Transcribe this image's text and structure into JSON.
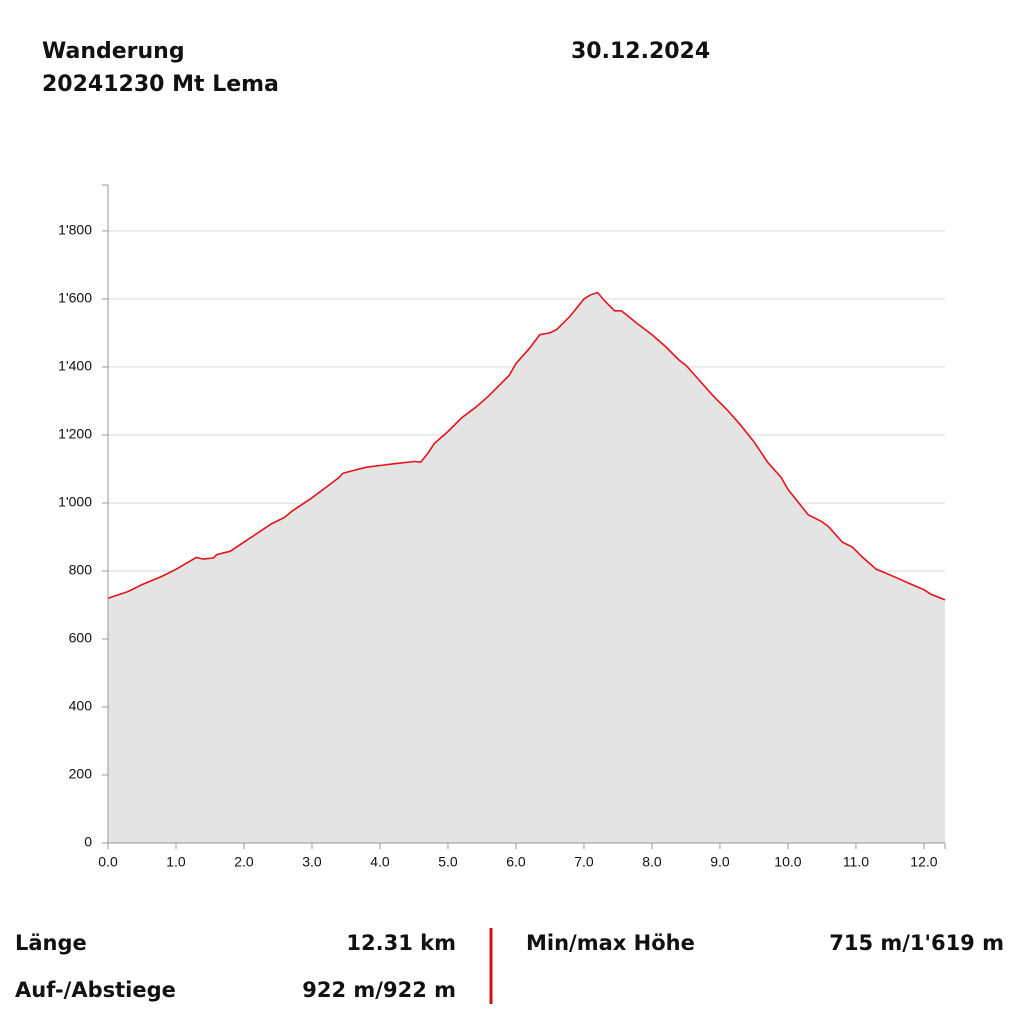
{
  "header": {
    "title": "Wanderung",
    "subtitle": "20241230 Mt Lema",
    "date": "30.12.2024"
  },
  "chart_data": {
    "type": "area",
    "x": [
      0,
      0.3,
      0.5,
      0.8,
      1.0,
      1.3,
      1.4,
      1.55,
      1.6,
      1.8,
      2.0,
      2.4,
      2.6,
      2.7,
      3.0,
      3.2,
      3.4,
      3.45,
      3.6,
      3.8,
      4.0,
      4.2,
      4.5,
      4.6,
      4.7,
      4.8,
      5.0,
      5.2,
      5.4,
      5.6,
      5.8,
      5.9,
      6.0,
      6.2,
      6.35,
      6.5,
      6.6,
      6.8,
      7.0,
      7.1,
      7.2,
      7.3,
      7.45,
      7.55,
      7.8,
      8.0,
      8.2,
      8.4,
      8.5,
      8.7,
      8.9,
      9.1,
      9.3,
      9.5,
      9.7,
      9.9,
      10.0,
      10.3,
      10.5,
      10.6,
      10.8,
      10.95,
      11.1,
      11.3,
      11.4,
      11.6,
      11.8,
      12.0,
      12.1,
      12.31
    ],
    "values": [
      720,
      740,
      760,
      785,
      805,
      840,
      835,
      838,
      848,
      858,
      885,
      938,
      958,
      975,
      1015,
      1045,
      1075,
      1087,
      1095,
      1105,
      1110,
      1115,
      1122,
      1120,
      1145,
      1175,
      1210,
      1250,
      1280,
      1315,
      1355,
      1375,
      1410,
      1455,
      1495,
      1500,
      1510,
      1550,
      1600,
      1612,
      1619,
      1595,
      1565,
      1565,
      1525,
      1495,
      1460,
      1420,
      1405,
      1360,
      1315,
      1275,
      1230,
      1180,
      1120,
      1075,
      1040,
      965,
      945,
      930,
      885,
      870,
      840,
      805,
      797,
      780,
      762,
      745,
      732,
      715
    ],
    "color": "#e3131b",
    "fill_color": "#e4e4e4",
    "xlim": [
      0,
      12.31
    ],
    "ylim": [
      0,
      1935
    ],
    "xticks": [
      {
        "value": 0,
        "label": "0.0"
      },
      {
        "value": 1,
        "label": "1.0"
      },
      {
        "value": 2,
        "label": "2.0"
      },
      {
        "value": 3,
        "label": "3.0"
      },
      {
        "value": 4,
        "label": "4.0"
      },
      {
        "value": 5,
        "label": "5.0"
      },
      {
        "value": 6,
        "label": "6.0"
      },
      {
        "value": 7,
        "label": "7.0"
      },
      {
        "value": 8,
        "label": "8.0"
      },
      {
        "value": 9,
        "label": "9.0"
      },
      {
        "value": 10,
        "label": "10.0"
      },
      {
        "value": 11,
        "label": "11.0"
      },
      {
        "value": 12,
        "label": "12.0"
      }
    ],
    "yticks": [
      0,
      200,
      400,
      600,
      800,
      {
        "value": 1000,
        "label": "1'000"
      },
      {
        "value": 1200,
        "label": "1'200"
      },
      {
        "value": 1400,
        "label": "1'400"
      },
      {
        "value": 1600,
        "label": "1'600"
      },
      {
        "value": 1800,
        "label": "1'800"
      }
    ],
    "grid": true
  },
  "stats": [
    {
      "label": "Länge",
      "value": "12.31 km"
    },
    {
      "label": "Auf-/Abstiege",
      "value": "922 m/922 m"
    },
    {
      "label": "Min/max Höhe",
      "value": "715 m/1'619 m"
    }
  ]
}
